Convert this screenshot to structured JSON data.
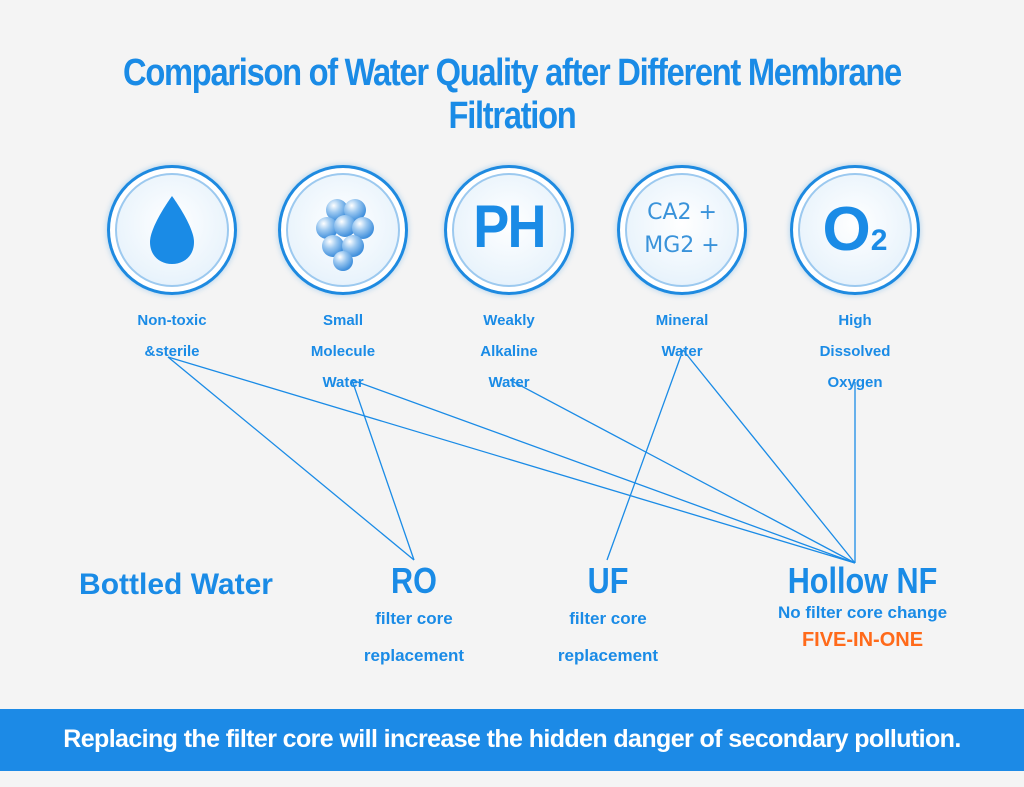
{
  "title": "Comparison of Water Quality after Different Membrane Filtration",
  "features": [
    {
      "icon": "water-drop-icon",
      "line1": "Non-toxic",
      "line2": "&sterile",
      "line3": ""
    },
    {
      "icon": "molecules-icon",
      "line1": "Small",
      "line2": "Molecule",
      "line3": "Water"
    },
    {
      "icon": "ph-icon",
      "icon_text": "PH",
      "line1": "Weakly",
      "line2": "Alkaline",
      "line3": "Water"
    },
    {
      "icon": "mineral-icon",
      "icon_text_1": "CA2 +",
      "icon_text_2": "MG2 +",
      "line1": "Mineral",
      "line2": "Water",
      "line3": ""
    },
    {
      "icon": "oxygen-icon",
      "icon_text_o": "O",
      "icon_text_2": "2",
      "line1": "High",
      "line2": "Dissolved",
      "line3": "Oxygen"
    }
  ],
  "options": {
    "bottled": {
      "name": "Bottled Water"
    },
    "ro": {
      "name": "RO",
      "sub1": "filter core",
      "sub2": "replacement"
    },
    "uf": {
      "name": "UF",
      "sub1": "filter core",
      "sub2": "replacement"
    },
    "nf": {
      "name": "Hollow NF",
      "sub1": "No filter core change",
      "highlight": "FIVE-IN-ONE"
    }
  },
  "banner": "Replacing the filter core will increase the hidden danger of secondary pollution.",
  "colors": {
    "accent": "#1a8be6",
    "highlight": "#ff6a1a",
    "banner": "#1c8ae6"
  }
}
